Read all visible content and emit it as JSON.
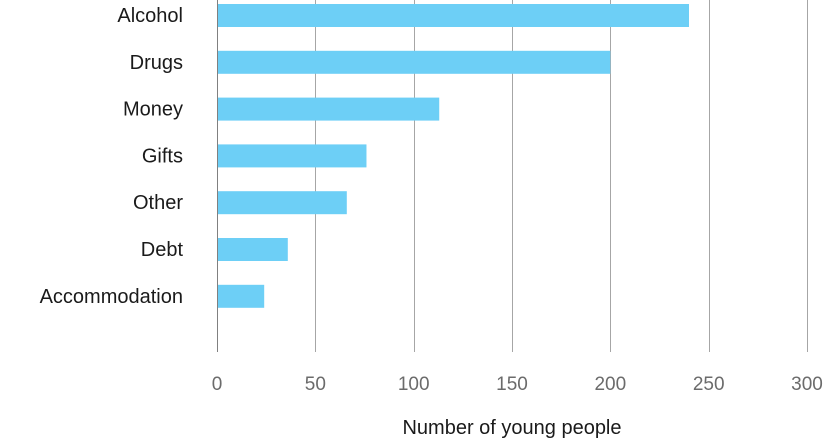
{
  "chart_data": {
    "type": "bar",
    "orientation": "horizontal",
    "categories": [
      "Alcohol",
      "Drugs",
      "Money",
      "Gifts",
      "Other",
      "Debt",
      "Accommodation"
    ],
    "values": [
      240,
      200,
      113,
      76,
      66,
      36,
      24
    ],
    "xlabel": "Number of young people",
    "ylabel": "",
    "xlim": [
      0,
      300
    ],
    "xticks": [
      0,
      50,
      100,
      150,
      200,
      250,
      300
    ],
    "grid": "vertical",
    "legend": "none",
    "bar_color": "#6dcff6"
  }
}
